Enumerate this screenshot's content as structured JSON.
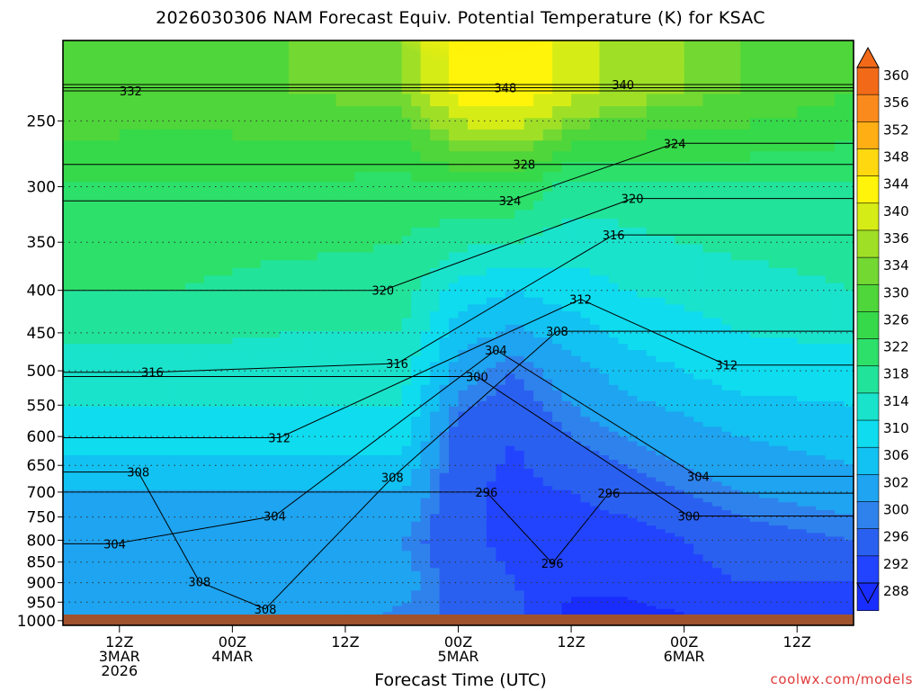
{
  "title": "2026030306 NAM Forecast Equiv. Potential Temperature (K) for KSAC",
  "credit": "coolwx.com/models",
  "chart_data": {
    "type": "heatmap",
    "title": "2026030306 NAM Forecast Equiv. Potential Temperature (K) for KSAC",
    "xlabel": "Forecast Time (UTC)",
    "ylabel": "",
    "x_ticks": [
      {
        "hour": 6,
        "lines": [
          "12Z",
          "3MAR",
          "2026"
        ]
      },
      {
        "hour": 18,
        "lines": [
          "00Z",
          "4MAR"
        ]
      },
      {
        "hour": 30,
        "lines": [
          "12Z"
        ]
      },
      {
        "hour": 42,
        "lines": [
          "00Z",
          "5MAR"
        ]
      },
      {
        "hour": 54,
        "lines": [
          "12Z"
        ]
      },
      {
        "hour": 66,
        "lines": [
          "00Z",
          "6MAR"
        ]
      },
      {
        "hour": 78,
        "lines": [
          "12Z"
        ]
      }
    ],
    "x_range_hours": [
      0,
      84
    ],
    "y_ticks": [
      250,
      300,
      350,
      400,
      450,
      500,
      550,
      600,
      650,
      700,
      750,
      800,
      850,
      900,
      950,
      1000
    ],
    "y_range_hpa": [
      200,
      1013
    ],
    "y_scale": "log-pressure",
    "grid": "dotted at pressure levels",
    "colorbar": {
      "levels": [
        288,
        292,
        296,
        300,
        302,
        306,
        310,
        314,
        318,
        322,
        326,
        330,
        334,
        336,
        340,
        344,
        348,
        352,
        356,
        360
      ],
      "colors": [
        "#1a2dff",
        "#2244ff",
        "#2a60f0",
        "#2f82ec",
        "#1ea4f0",
        "#12c2f2",
        "#0fdcef",
        "#1ae3cc",
        "#22e39a",
        "#2ce06a",
        "#36d94a",
        "#4fd63a",
        "#73d832",
        "#9fe026",
        "#d6ec16",
        "#fff40a",
        "#ffd810",
        "#ffae14",
        "#fb8a1c",
        "#f26a18"
      ],
      "extend": "both"
    },
    "contour_labels": [
      {
        "t": 7.2,
        "p": 230,
        "v": 332
      },
      {
        "t": 47.0,
        "p": 228,
        "v": 348
      },
      {
        "t": 59.5,
        "p": 226,
        "v": 340
      },
      {
        "t": 65.0,
        "p": 266,
        "v": 324
      },
      {
        "t": 49.0,
        "p": 282,
        "v": 328
      },
      {
        "t": 47.5,
        "p": 312,
        "v": 324
      },
      {
        "t": 60.5,
        "p": 310,
        "v": 320
      },
      {
        "t": 58.5,
        "p": 343,
        "v": 316
      },
      {
        "t": 34.0,
        "p": 400,
        "v": 320
      },
      {
        "t": 55.0,
        "p": 410,
        "v": 312
      },
      {
        "t": 52.5,
        "p": 448,
        "v": 308
      },
      {
        "t": 9.5,
        "p": 502,
        "v": 316
      },
      {
        "t": 35.5,
        "p": 490,
        "v": 316
      },
      {
        "t": 46.0,
        "p": 472,
        "v": 304
      },
      {
        "t": 44.0,
        "p": 508,
        "v": 300
      },
      {
        "t": 70.5,
        "p": 492,
        "v": 312
      },
      {
        "t": 23.0,
        "p": 602,
        "v": 312
      },
      {
        "t": 8.0,
        "p": 662,
        "v": 308
      },
      {
        "t": 35.0,
        "p": 672,
        "v": 308
      },
      {
        "t": 45.0,
        "p": 700,
        "v": 296
      },
      {
        "t": 58.0,
        "p": 702,
        "v": 296
      },
      {
        "t": 67.5,
        "p": 670,
        "v": 304
      },
      {
        "t": 66.5,
        "p": 748,
        "v": 300
      },
      {
        "t": 22.5,
        "p": 748,
        "v": 304
      },
      {
        "t": 5.5,
        "p": 808,
        "v": 304
      },
      {
        "t": 52.0,
        "p": 853,
        "v": 296
      },
      {
        "t": 14.5,
        "p": 898,
        "v": 308
      },
      {
        "t": 21.5,
        "p": 968,
        "v": 308
      }
    ]
  }
}
